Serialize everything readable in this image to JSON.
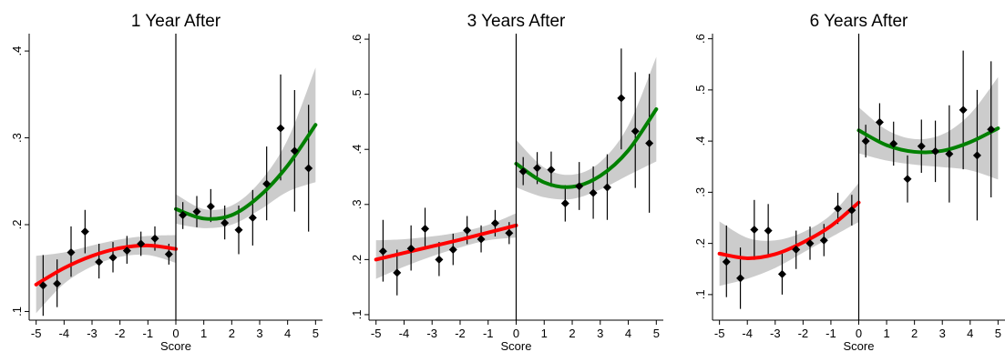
{
  "chart_data": [
    {
      "type": "scatter",
      "title": "1 Year After",
      "xlabel": "Score",
      "ylabel": "",
      "xlim": [
        -5.25,
        5.25
      ],
      "ylim": [
        0.09,
        0.42
      ],
      "xticks": [
        -5,
        -4,
        -3,
        -2,
        -1,
        0,
        1,
        2,
        3,
        4,
        5
      ],
      "yticks": [
        0.1,
        0.2,
        0.3,
        0.4
      ],
      "ytick_labels": [
        ".1",
        ".2",
        ".3",
        ".4"
      ],
      "cutoff": 0,
      "points": [
        {
          "x": -4.75,
          "y": 0.13,
          "lo": 0.095,
          "hi": 0.165
        },
        {
          "x": -4.25,
          "y": 0.132,
          "lo": 0.105,
          "hi": 0.16
        },
        {
          "x": -3.75,
          "y": 0.168,
          "lo": 0.14,
          "hi": 0.198
        },
        {
          "x": -3.25,
          "y": 0.192,
          "lo": 0.167,
          "hi": 0.217
        },
        {
          "x": -2.75,
          "y": 0.157,
          "lo": 0.138,
          "hi": 0.178
        },
        {
          "x": -2.25,
          "y": 0.162,
          "lo": 0.145,
          "hi": 0.18
        },
        {
          "x": -1.75,
          "y": 0.17,
          "lo": 0.155,
          "hi": 0.187
        },
        {
          "x": -1.25,
          "y": 0.178,
          "lo": 0.164,
          "hi": 0.192
        },
        {
          "x": -0.75,
          "y": 0.184,
          "lo": 0.17,
          "hi": 0.198
        },
        {
          "x": -0.25,
          "y": 0.166,
          "lo": 0.154,
          "hi": 0.178
        },
        {
          "x": 0.25,
          "y": 0.211,
          "lo": 0.195,
          "hi": 0.226
        },
        {
          "x": 0.75,
          "y": 0.215,
          "lo": 0.197,
          "hi": 0.233
        },
        {
          "x": 1.25,
          "y": 0.221,
          "lo": 0.203,
          "hi": 0.241
        },
        {
          "x": 1.75,
          "y": 0.202,
          "lo": 0.183,
          "hi": 0.222
        },
        {
          "x": 2.25,
          "y": 0.194,
          "lo": 0.166,
          "hi": 0.222
        },
        {
          "x": 2.75,
          "y": 0.208,
          "lo": 0.176,
          "hi": 0.24
        },
        {
          "x": 3.25,
          "y": 0.247,
          "lo": 0.205,
          "hi": 0.29
        },
        {
          "x": 3.75,
          "y": 0.311,
          "lo": 0.251,
          "hi": 0.373
        },
        {
          "x": 4.25,
          "y": 0.285,
          "lo": 0.215,
          "hi": 0.355
        },
        {
          "x": 4.75,
          "y": 0.265,
          "lo": 0.192,
          "hi": 0.338
        }
      ],
      "fit_left": {
        "color": "#ff0000",
        "x": [
          -5,
          -4,
          -3,
          -2,
          -1,
          0
        ],
        "y": [
          0.131,
          0.15,
          0.164,
          0.173,
          0.176,
          0.172
        ],
        "ci_half": [
          0.033,
          0.018,
          0.012,
          0.01,
          0.011,
          0.016
        ]
      },
      "fit_right": {
        "color": "#008000",
        "x": [
          0,
          1,
          2,
          3,
          4,
          5
        ],
        "y": [
          0.218,
          0.207,
          0.211,
          0.233,
          0.268,
          0.315
        ],
        "ci_half": [
          0.017,
          0.011,
          0.011,
          0.016,
          0.03,
          0.066
        ]
      }
    },
    {
      "type": "scatter",
      "title": "3 Years After",
      "xlabel": "Score",
      "ylabel": "",
      "xlim": [
        -5.25,
        5.25
      ],
      "ylim": [
        0.09,
        0.61
      ],
      "xticks": [
        -5,
        -4,
        -3,
        -2,
        -1,
        0,
        1,
        2,
        3,
        4,
        5
      ],
      "yticks": [
        0.1,
        0.2,
        0.3,
        0.4,
        0.5,
        0.6
      ],
      "ytick_labels": [
        ".1",
        ".2",
        ".3",
        ".4",
        ".5",
        ".6"
      ],
      "cutoff": 0,
      "points": [
        {
          "x": -4.75,
          "y": 0.215,
          "lo": 0.16,
          "hi": 0.272
        },
        {
          "x": -4.25,
          "y": 0.176,
          "lo": 0.135,
          "hi": 0.218
        },
        {
          "x": -3.75,
          "y": 0.22,
          "lo": 0.18,
          "hi": 0.262
        },
        {
          "x": -3.25,
          "y": 0.256,
          "lo": 0.218,
          "hi": 0.294
        },
        {
          "x": -2.75,
          "y": 0.2,
          "lo": 0.17,
          "hi": 0.232
        },
        {
          "x": -2.25,
          "y": 0.218,
          "lo": 0.19,
          "hi": 0.247
        },
        {
          "x": -1.75,
          "y": 0.253,
          "lo": 0.228,
          "hi": 0.279
        },
        {
          "x": -1.25,
          "y": 0.237,
          "lo": 0.213,
          "hi": 0.262
        },
        {
          "x": -0.75,
          "y": 0.266,
          "lo": 0.242,
          "hi": 0.29
        },
        {
          "x": -0.25,
          "y": 0.248,
          "lo": 0.228,
          "hi": 0.268
        },
        {
          "x": 0.25,
          "y": 0.36,
          "lo": 0.335,
          "hi": 0.386
        },
        {
          "x": 0.75,
          "y": 0.366,
          "lo": 0.337,
          "hi": 0.395
        },
        {
          "x": 1.25,
          "y": 0.363,
          "lo": 0.332,
          "hi": 0.396
        },
        {
          "x": 1.75,
          "y": 0.302,
          "lo": 0.269,
          "hi": 0.335
        },
        {
          "x": 2.25,
          "y": 0.333,
          "lo": 0.29,
          "hi": 0.377
        },
        {
          "x": 2.75,
          "y": 0.321,
          "lo": 0.274,
          "hi": 0.369
        },
        {
          "x": 3.25,
          "y": 0.331,
          "lo": 0.272,
          "hi": 0.391
        },
        {
          "x": 3.75,
          "y": 0.493,
          "lo": 0.4,
          "hi": 0.583
        },
        {
          "x": 4.25,
          "y": 0.433,
          "lo": 0.33,
          "hi": 0.54
        },
        {
          "x": 4.75,
          "y": 0.411,
          "lo": 0.285,
          "hi": 0.537
        }
      ],
      "fit_left": {
        "color": "#ff0000",
        "x": [
          -5,
          -4,
          -3,
          -2,
          -1,
          0
        ],
        "y": [
          0.2,
          0.212,
          0.224,
          0.236,
          0.249,
          0.262
        ],
        "ci_half": [
          0.035,
          0.025,
          0.018,
          0.014,
          0.014,
          0.022
        ]
      },
      "fit_right": {
        "color": "#008000",
        "x": [
          0,
          1,
          2,
          3,
          4,
          5
        ],
        "y": [
          0.374,
          0.34,
          0.332,
          0.352,
          0.398,
          0.473
        ],
        "ci_half": [
          0.043,
          0.027,
          0.022,
          0.025,
          0.045,
          0.095
        ]
      }
    },
    {
      "type": "scatter",
      "title": "6 Years After",
      "xlabel": "Score",
      "ylabel": "",
      "xlim": [
        -5.25,
        5.25
      ],
      "ylim": [
        0.05,
        0.61
      ],
      "xticks": [
        -5,
        -4,
        -3,
        -2,
        -1,
        0,
        1,
        2,
        3,
        4,
        5
      ],
      "yticks": [
        0.1,
        0.2,
        0.3,
        0.4,
        0.5,
        0.6
      ],
      "ytick_labels": [
        ".1",
        ".2",
        ".3",
        ".4",
        ".5",
        ".6"
      ],
      "cutoff": 0,
      "points": [
        {
          "x": -4.75,
          "y": 0.164,
          "lo": 0.095,
          "hi": 0.235
        },
        {
          "x": -4.25,
          "y": 0.132,
          "lo": 0.072,
          "hi": 0.192
        },
        {
          "x": -3.75,
          "y": 0.227,
          "lo": 0.168,
          "hi": 0.285
        },
        {
          "x": -3.25,
          "y": 0.225,
          "lo": 0.173,
          "hi": 0.277
        },
        {
          "x": -2.75,
          "y": 0.14,
          "lo": 0.1,
          "hi": 0.18
        },
        {
          "x": -2.25,
          "y": 0.188,
          "lo": 0.15,
          "hi": 0.225
        },
        {
          "x": -1.75,
          "y": 0.2,
          "lo": 0.168,
          "hi": 0.233
        },
        {
          "x": -1.25,
          "y": 0.206,
          "lo": 0.175,
          "hi": 0.238
        },
        {
          "x": -0.75,
          "y": 0.268,
          "lo": 0.238,
          "hi": 0.299
        },
        {
          "x": -0.25,
          "y": 0.265,
          "lo": 0.235,
          "hi": 0.295
        },
        {
          "x": 0.25,
          "y": 0.4,
          "lo": 0.368,
          "hi": 0.432
        },
        {
          "x": 0.75,
          "y": 0.437,
          "lo": 0.4,
          "hi": 0.474
        },
        {
          "x": 1.25,
          "y": 0.395,
          "lo": 0.352,
          "hi": 0.438
        },
        {
          "x": 1.75,
          "y": 0.326,
          "lo": 0.28,
          "hi": 0.372
        },
        {
          "x": 2.25,
          "y": 0.39,
          "lo": 0.338,
          "hi": 0.442
        },
        {
          "x": 2.75,
          "y": 0.38,
          "lo": 0.32,
          "hi": 0.44
        },
        {
          "x": 3.25,
          "y": 0.375,
          "lo": 0.28,
          "hi": 0.47
        },
        {
          "x": 3.75,
          "y": 0.461,
          "lo": 0.345,
          "hi": 0.577
        },
        {
          "x": 4.25,
          "y": 0.372,
          "lo": 0.245,
          "hi": 0.5
        },
        {
          "x": 4.75,
          "y": 0.423,
          "lo": 0.29,
          "hi": 0.556
        }
      ],
      "fit_left": {
        "color": "#ff0000",
        "x": [
          -5,
          -4,
          -3,
          -2,
          -1,
          0
        ],
        "y": [
          0.18,
          0.171,
          0.179,
          0.202,
          0.234,
          0.28
        ],
        "ci_half": [
          0.063,
          0.04,
          0.027,
          0.02,
          0.022,
          0.038
        ]
      },
      "fit_right": {
        "color": "#008000",
        "x": [
          0,
          1,
          2,
          3,
          4,
          5
        ],
        "y": [
          0.421,
          0.392,
          0.379,
          0.381,
          0.398,
          0.425
        ],
        "ci_half": [
          0.045,
          0.03,
          0.025,
          0.032,
          0.055,
          0.1
        ]
      }
    }
  ]
}
